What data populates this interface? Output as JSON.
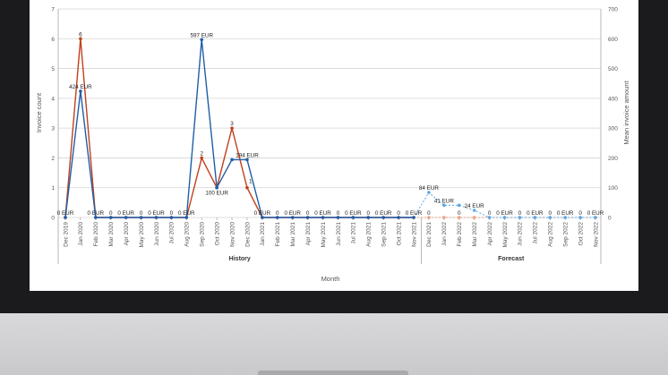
{
  "chart_data": {
    "type": "line",
    "title": "",
    "xlabel": "Month",
    "ylabel_left": "Invoice count",
    "ylabel_right": "Mean invoice amount",
    "ylim_left": [
      0,
      7
    ],
    "ylim_right": [
      0,
      700
    ],
    "yticks_left": [
      "0",
      "1",
      "2",
      "3",
      "4",
      "5",
      "6",
      "7"
    ],
    "yticks_right": [
      "0",
      "100",
      "200",
      "300",
      "400",
      "500",
      "600",
      "700"
    ],
    "grid": true,
    "groups": [
      {
        "label": "History",
        "from": "Dec 2019",
        "to": "Nov 2021"
      },
      {
        "label": "Forecast",
        "from": "Dec 2021",
        "to": "Nov 2022"
      }
    ],
    "categories": [
      "Dec 2019",
      "Jan 2020",
      "Feb 2020",
      "Mar 2020",
      "Apr 2020",
      "May 2020",
      "Jun 2020",
      "Jul 2020",
      "Aug 2020",
      "Sep 2020",
      "Oct 2020",
      "Nov 2020",
      "Dec 2020",
      "Jan 2021",
      "Feb 2021",
      "Mar 2021",
      "Apr 2021",
      "May 2021",
      "Jun 2021",
      "Jul 2021",
      "Aug 2021",
      "Sep 2021",
      "Oct 2021",
      "Nov 2021",
      "Dec 2021",
      "Jan 2022",
      "Feb 2022",
      "Mar 2022",
      "Apr 2022",
      "May 2022",
      "Jun 2022",
      "Jul 2022",
      "Aug 2022",
      "Sep 2022",
      "Oct 2022",
      "Nov 2022"
    ],
    "series": [
      {
        "role": "count",
        "axis": "left",
        "color": "#c0401b",
        "forecast_color": "#f0a080",
        "values": [
          0,
          6,
          0,
          0,
          0,
          0,
          0,
          0,
          0,
          2,
          1,
          3,
          1,
          0,
          0,
          0,
          0,
          0,
          0,
          0,
          0,
          0,
          0,
          0,
          0,
          0,
          0,
          0,
          0,
          0,
          0,
          0,
          0,
          0,
          0,
          0
        ],
        "labels": [
          "",
          "6",
          "",
          "0",
          "",
          "0",
          "",
          "0",
          "",
          "2",
          "",
          "3",
          "1",
          "",
          "0",
          "",
          "0",
          "",
          "0",
          "",
          "0",
          "",
          "0",
          "",
          "0",
          "",
          "0",
          "",
          "0",
          "",
          "0",
          "",
          "0",
          "",
          "0",
          ""
        ]
      },
      {
        "role": "mean",
        "axis": "right",
        "color": "#1f5ea8",
        "forecast_color": "#5aa7e8",
        "values": [
          0,
          424,
          0,
          0,
          0,
          0,
          0,
          0,
          0,
          597,
          100,
          194,
          194,
          0,
          0,
          0,
          0,
          0,
          0,
          0,
          0,
          0,
          0,
          0,
          84,
          41,
          41,
          24,
          0,
          0,
          0,
          0,
          0,
          0,
          0,
          0
        ],
        "labels": [
          "0 EUR",
          "424 EUR",
          "0 EUR",
          "",
          "0 EUR",
          "",
          "0 EUR",
          "",
          "0 EUR",
          "597 EUR",
          "100 EUR",
          "",
          "194 EUR",
          "0 EUR",
          "",
          "0 EUR",
          "",
          "0 EUR",
          "",
          "0 EUR",
          "",
          "0 EUR",
          "",
          "0 EUR",
          "84 EUR",
          "41 EUR",
          "",
          "24 EUR",
          "",
          "0 EUR",
          "",
          "0 EUR",
          "",
          "0 EUR",
          "",
          "0 EUR"
        ]
      }
    ]
  }
}
